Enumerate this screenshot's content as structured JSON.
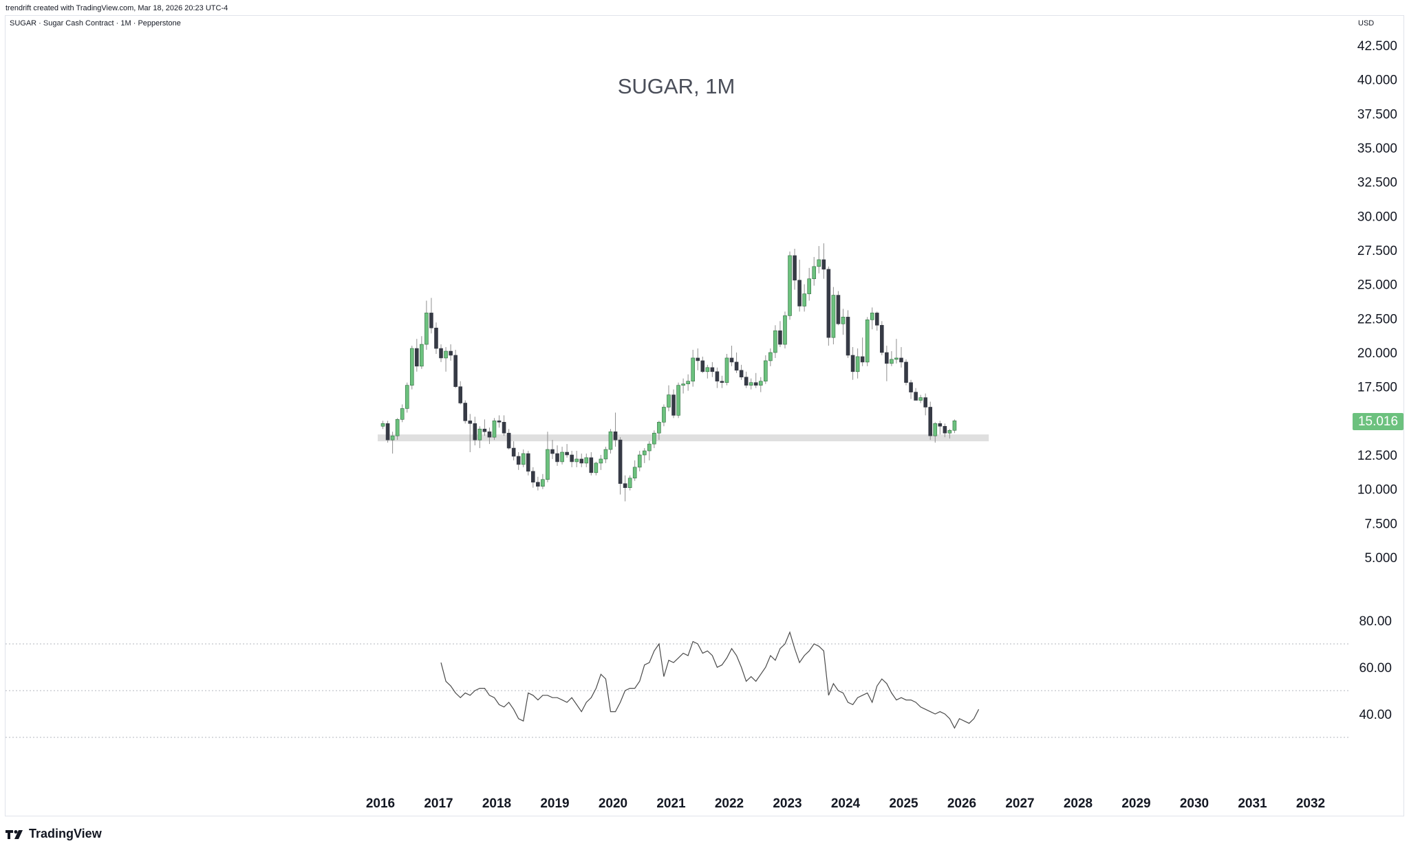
{
  "header": {
    "credit": "trendrift created with TradingView.com, Mar 18, 2026 20:23 UTC-4",
    "symbol_description": "SUGAR · Sugar Cash Contract · 1M · Pepperstone",
    "currency": "USD"
  },
  "footer": {
    "logo_text": "TradingView",
    "logo_icon": "tradingview-logo-icon"
  },
  "colors": {
    "up": "#6cc17e",
    "down": "#363a45",
    "wick": "#8e8e8e",
    "zone": "#d9d9d9",
    "rsi_line": "#4a4a4a",
    "badge": "#6cc17e"
  },
  "chart_data": [
    {
      "type": "candlestick",
      "title": "SUGAR, 1M",
      "interval": "1M",
      "x_start": "2016-01",
      "ylim": [
        5,
        42.5
      ],
      "yticks": [
        "5.000",
        "7.500",
        "10.000",
        "12.500",
        "15.000",
        "17.500",
        "20.000",
        "22.500",
        "25.000",
        "27.500",
        "30.000",
        "32.500",
        "35.000",
        "37.500",
        "40.000",
        "42.500"
      ],
      "xticks": [
        "2016",
        "2017",
        "2018",
        "2019",
        "2020",
        "2021",
        "2022",
        "2023",
        "2024",
        "2025",
        "2026",
        "2027",
        "2028",
        "2029",
        "2030",
        "2031",
        "2032"
      ],
      "last_price": "15.016",
      "support_zone": {
        "low": 13.5,
        "high": 14.0,
        "from": "2016-01",
        "to": "2026-06"
      },
      "ohlc": [
        [
          14.6,
          15.0,
          14.4,
          14.8
        ],
        [
          14.8,
          15.0,
          13.4,
          13.6
        ],
        [
          13.6,
          14.2,
          12.6,
          13.9
        ],
        [
          13.9,
          15.2,
          13.6,
          15.1
        ],
        [
          15.1,
          16.2,
          14.9,
          15.9
        ],
        [
          15.9,
          17.8,
          15.6,
          17.6
        ],
        [
          17.6,
          20.5,
          17.3,
          20.3
        ],
        [
          20.3,
          21.0,
          18.6,
          19.0
        ],
        [
          19.0,
          21.2,
          18.8,
          20.6
        ],
        [
          20.6,
          23.8,
          20.2,
          22.9
        ],
        [
          22.9,
          24.0,
          21.4,
          21.8
        ],
        [
          21.8,
          22.2,
          19.9,
          20.3
        ],
        [
          20.3,
          20.6,
          19.3,
          19.6
        ],
        [
          19.6,
          20.4,
          18.6,
          20.1
        ],
        [
          20.1,
          20.6,
          19.4,
          19.8
        ],
        [
          19.8,
          20.2,
          17.4,
          17.5
        ],
        [
          17.5,
          17.9,
          16.2,
          16.3
        ],
        [
          16.3,
          16.5,
          14.8,
          15.0
        ],
        [
          15.0,
          15.5,
          12.7,
          14.8
        ],
        [
          14.8,
          15.3,
          13.2,
          13.6
        ],
        [
          13.6,
          14.6,
          13.0,
          14.4
        ],
        [
          14.4,
          15.1,
          13.9,
          14.2
        ],
        [
          14.2,
          14.5,
          13.3,
          13.8
        ],
        [
          13.8,
          15.2,
          13.6,
          15.0
        ],
        [
          15.0,
          15.4,
          14.5,
          14.9
        ],
        [
          14.9,
          15.4,
          13.9,
          14.1
        ],
        [
          14.1,
          14.4,
          12.9,
          13.0
        ],
        [
          13.0,
          13.5,
          12.1,
          12.4
        ],
        [
          12.4,
          12.7,
          11.4,
          11.8
        ],
        [
          11.8,
          12.9,
          11.6,
          12.6
        ],
        [
          12.6,
          12.8,
          11.0,
          11.3
        ],
        [
          11.3,
          11.6,
          10.1,
          10.5
        ],
        [
          10.5,
          10.9,
          9.9,
          10.2
        ],
        [
          10.2,
          11.1,
          10.0,
          10.7
        ],
        [
          10.7,
          14.2,
          10.5,
          12.9
        ],
        [
          12.9,
          13.6,
          12.2,
          12.6
        ],
        [
          12.6,
          13.2,
          11.7,
          12.0
        ],
        [
          12.0,
          13.1,
          11.8,
          12.7
        ],
        [
          12.7,
          13.3,
          12.3,
          12.5
        ],
        [
          12.5,
          12.8,
          11.6,
          12.0
        ],
        [
          12.0,
          12.8,
          11.6,
          12.2
        ],
        [
          12.2,
          12.6,
          11.6,
          11.9
        ],
        [
          11.9,
          12.6,
          11.6,
          12.3
        ],
        [
          12.3,
          12.7,
          11.0,
          11.2
        ],
        [
          11.2,
          12.0,
          11.0,
          11.9
        ],
        [
          11.9,
          12.5,
          11.4,
          12.2
        ],
        [
          12.2,
          13.1,
          11.9,
          12.9
        ],
        [
          12.9,
          14.4,
          12.6,
          14.2
        ],
        [
          14.2,
          15.6,
          13.1,
          13.6
        ],
        [
          13.6,
          13.8,
          9.6,
          10.4
        ],
        [
          10.4,
          11.0,
          9.1,
          10.1
        ],
        [
          10.1,
          11.0,
          9.9,
          10.8
        ],
        [
          10.8,
          12.1,
          10.6,
          11.6
        ],
        [
          11.6,
          12.8,
          11.3,
          12.5
        ],
        [
          12.5,
          13.0,
          11.9,
          12.8
        ],
        [
          12.8,
          13.5,
          12.1,
          13.3
        ],
        [
          13.3,
          14.3,
          13.0,
          14.1
        ],
        [
          14.1,
          15.0,
          13.6,
          14.9
        ],
        [
          14.9,
          16.2,
          14.6,
          16.0
        ],
        [
          16.0,
          17.6,
          15.7,
          16.9
        ],
        [
          16.9,
          17.3,
          15.2,
          15.4
        ],
        [
          15.4,
          17.8,
          15.2,
          17.6
        ],
        [
          17.6,
          18.1,
          17.0,
          17.7
        ],
        [
          17.7,
          18.4,
          17.2,
          17.9
        ],
        [
          17.9,
          20.2,
          17.5,
          19.6
        ],
        [
          19.6,
          20.3,
          18.7,
          19.4
        ],
        [
          19.4,
          19.7,
          18.5,
          18.6
        ],
        [
          18.6,
          19.1,
          18.1,
          18.9
        ],
        [
          18.9,
          19.3,
          18.2,
          18.6
        ],
        [
          18.6,
          18.9,
          17.4,
          17.9
        ],
        [
          17.9,
          18.3,
          17.4,
          17.8
        ],
        [
          17.8,
          19.9,
          17.6,
          19.6
        ],
        [
          19.6,
          20.5,
          19.0,
          19.3
        ],
        [
          19.3,
          20.0,
          18.5,
          18.7
        ],
        [
          18.7,
          19.1,
          18.0,
          18.2
        ],
        [
          18.2,
          18.6,
          17.4,
          17.6
        ],
        [
          17.6,
          18.1,
          17.3,
          17.8
        ],
        [
          17.8,
          18.5,
          17.4,
          17.6
        ],
        [
          17.6,
          18.2,
          17.1,
          17.9
        ],
        [
          17.9,
          19.8,
          17.7,
          19.4
        ],
        [
          19.4,
          20.3,
          19.0,
          20.0
        ],
        [
          20.0,
          22.0,
          19.6,
          21.6
        ],
        [
          21.6,
          22.3,
          20.4,
          20.6
        ],
        [
          20.6,
          23.0,
          20.3,
          22.7
        ],
        [
          22.7,
          27.4,
          22.4,
          27.1
        ],
        [
          27.1,
          27.6,
          24.6,
          25.3
        ],
        [
          25.3,
          26.8,
          23.0,
          23.4
        ],
        [
          23.4,
          25.0,
          23.0,
          24.3
        ],
        [
          24.3,
          26.2,
          23.8,
          25.4
        ],
        [
          25.4,
          27.0,
          24.9,
          26.3
        ],
        [
          26.3,
          27.8,
          25.8,
          26.8
        ],
        [
          26.8,
          28.0,
          25.4,
          26.1
        ],
        [
          26.1,
          26.3,
          20.5,
          21.1
        ],
        [
          21.1,
          24.8,
          20.6,
          24.2
        ],
        [
          24.2,
          24.5,
          22.0,
          22.1
        ],
        [
          22.1,
          23.2,
          21.3,
          22.6
        ],
        [
          22.6,
          23.1,
          19.6,
          19.8
        ],
        [
          19.8,
          20.4,
          18.0,
          18.6
        ],
        [
          18.6,
          20.3,
          18.1,
          19.7
        ],
        [
          19.7,
          21.1,
          19.0,
          19.3
        ],
        [
          19.3,
          22.6,
          19.0,
          22.4
        ],
        [
          22.4,
          23.3,
          21.7,
          22.9
        ],
        [
          22.9,
          23.0,
          21.6,
          22.0
        ],
        [
          22.0,
          22.3,
          19.8,
          20.0
        ],
        [
          20.0,
          20.5,
          17.9,
          19.2
        ],
        [
          19.2,
          20.1,
          19.0,
          19.5
        ],
        [
          19.5,
          21.0,
          19.2,
          19.6
        ],
        [
          19.6,
          20.4,
          18.9,
          19.3
        ],
        [
          19.3,
          19.5,
          17.6,
          17.8
        ],
        [
          17.8,
          18.0,
          16.6,
          17.1
        ],
        [
          17.1,
          17.4,
          16.5,
          16.5
        ],
        [
          16.5,
          16.9,
          16.3,
          16.7
        ],
        [
          16.7,
          17.0,
          15.4,
          16.0
        ],
        [
          16.0,
          16.4,
          13.6,
          13.9
        ],
        [
          13.9,
          14.9,
          13.4,
          14.8
        ],
        [
          14.8,
          15.0,
          14.0,
          14.6
        ],
        [
          14.6,
          14.8,
          13.8,
          14.1
        ],
        [
          14.1,
          14.4,
          13.7,
          14.3
        ],
        [
          14.3,
          15.1,
          14.1,
          15.0
        ]
      ]
    },
    {
      "type": "line",
      "name": "RSI",
      "ylim": [
        20,
        85
      ],
      "yticks": [
        "40.00",
        "60.00",
        "80.00"
      ],
      "bands": [
        30,
        50,
        70
      ],
      "x_start": "2017-01",
      "values": [
        62,
        54,
        52,
        49,
        47,
        49,
        48,
        50,
        51,
        51,
        48,
        47,
        44,
        43,
        45,
        42,
        38,
        37,
        49,
        48,
        46,
        48,
        48,
        47,
        47,
        46,
        45,
        47,
        44,
        41,
        45,
        47,
        51,
        57,
        55,
        41,
        41,
        45,
        50,
        51,
        51,
        54,
        61,
        62,
        67,
        70,
        56,
        63,
        62,
        64,
        66,
        65,
        71,
        70,
        66,
        67,
        65,
        60,
        61,
        64,
        68,
        65,
        60,
        54,
        56,
        54,
        57,
        60,
        65,
        63,
        68,
        70,
        75,
        68,
        62,
        65,
        67,
        70,
        69,
        67,
        48,
        53,
        50,
        49,
        45,
        44,
        47,
        48,
        49,
        45,
        52,
        55,
        53,
        49,
        46,
        47,
        46,
        46,
        45,
        43,
        42,
        41,
        40,
        41,
        40,
        38,
        34,
        38,
        37,
        36,
        38,
        42
      ]
    }
  ]
}
